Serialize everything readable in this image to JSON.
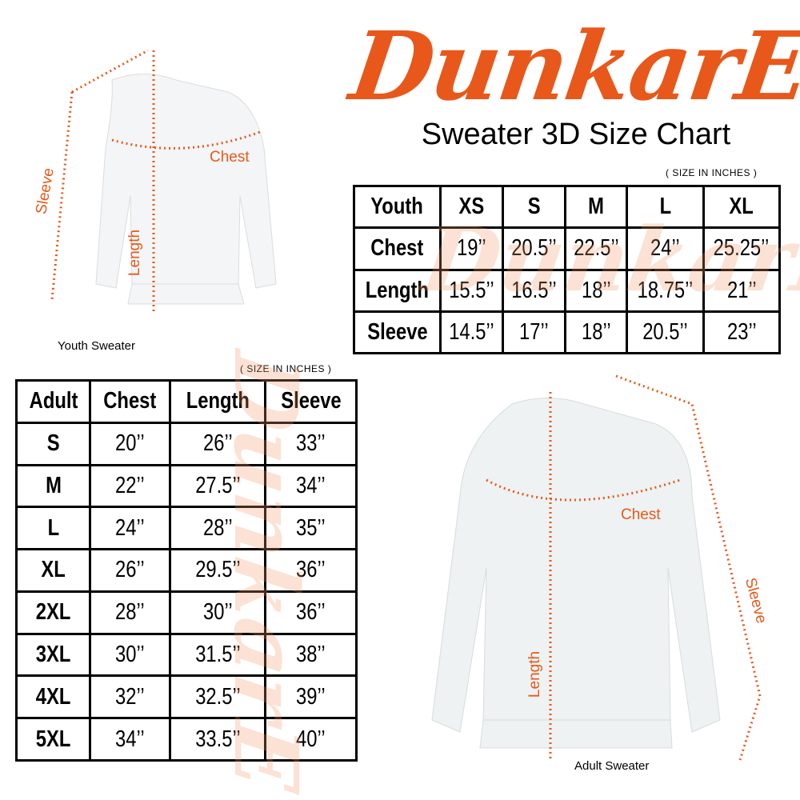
{
  "logo": {
    "text": "DunkarE",
    "color": "#e8581a"
  },
  "title": "Sweater 3D Size Chart",
  "youth": {
    "unit_note": "( SIZE IN INCHES )",
    "header": [
      "Youth",
      "XS",
      "S",
      "M",
      "L",
      "XL"
    ],
    "rows": [
      [
        "Chest",
        "19’’",
        "20.5’’",
        "22.5’’",
        "24’’",
        "25.25’’"
      ],
      [
        "Length",
        "15.5’’",
        "16.5’’",
        "18’’",
        "18.75’’",
        "21’’"
      ],
      [
        "Sleeve",
        "14.5’’",
        "17’’",
        "18’’",
        "20.5’’",
        "23’’"
      ]
    ],
    "image_label": "Youth Sweater",
    "measures": {
      "chest": "Chest",
      "length": "Length",
      "sleeve": "Sleeve"
    }
  },
  "adult": {
    "unit_note": "( SIZE IN INCHES )",
    "header": [
      "Adult",
      "Chest",
      "Length",
      "Sleeve"
    ],
    "rows": [
      [
        "S",
        "20’’",
        "26’’",
        "33’’"
      ],
      [
        "M",
        "22’’",
        "27.5’’",
        "34’’"
      ],
      [
        "L",
        "24’’",
        "28’’",
        "35’’"
      ],
      [
        "XL",
        "26’’",
        "29.5’’",
        "36’’"
      ],
      [
        "2XL",
        "28’’",
        "30’’",
        "36’’"
      ],
      [
        "3XL",
        "30’’",
        "31.5’’",
        "38’’"
      ],
      [
        "4XL",
        "32’’",
        "32.5’’",
        "39’’"
      ],
      [
        "5XL",
        "34’’",
        "33.5’’",
        "40’’"
      ]
    ],
    "image_label": "Adult Sweater",
    "measures": {
      "chest": "Chest",
      "length": "Length",
      "sleeve": "Sleeve"
    }
  }
}
